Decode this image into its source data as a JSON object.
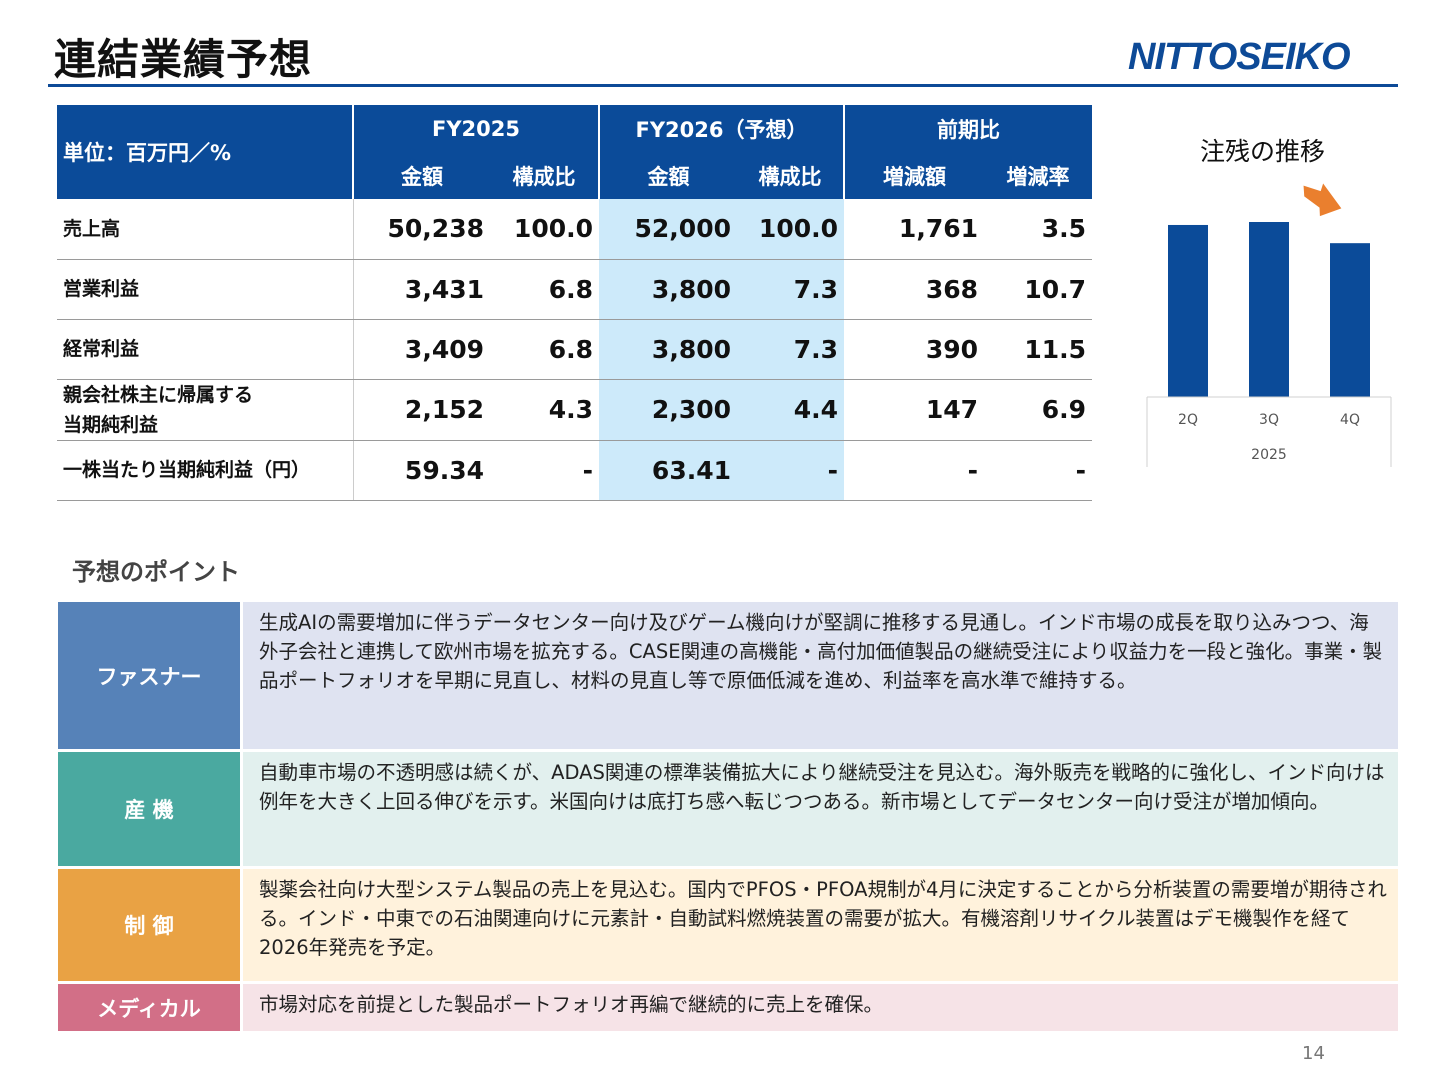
{
  "title": "連結業績予想",
  "logo": "NITTOSEIKO",
  "colors": {
    "brand": "#0d4a97",
    "highlight": "#cdeafa",
    "arrow": "#ea7f2e"
  },
  "table": {
    "unit_label": "単位：百万円／%",
    "groups": [
      "FY2025",
      "FY2026（予想）",
      "前期比"
    ],
    "subheaders": [
      "金額",
      "構成比",
      "金額",
      "構成比",
      "増減額",
      "増減率"
    ],
    "rows": [
      {
        "label": "売上高",
        "values": [
          "50,238",
          "100.0",
          "52,000",
          "100.0",
          "1,761",
          "3.5"
        ]
      },
      {
        "label": "営業利益",
        "values": [
          "3,431",
          "6.8",
          "3,800",
          "7.3",
          "368",
          "10.7"
        ]
      },
      {
        "label": "経常利益",
        "values": [
          "3,409",
          "6.8",
          "3,800",
          "7.3",
          "390",
          "11.5"
        ]
      },
      {
        "label": "親会社株主に帰属する",
        "label2": "当期純利益",
        "values": [
          "2,152",
          "4.3",
          "2,300",
          "4.4",
          "147",
          "6.9"
        ]
      },
      {
        "label": "一株当たり当期純利益（円）",
        "values": [
          "59.34",
          "-",
          "63.41",
          "-",
          "-",
          "-"
        ]
      }
    ]
  },
  "chart_data": {
    "type": "bar",
    "title": "注残の推移",
    "categories": [
      "2Q",
      "3Q",
      "4Q"
    ],
    "group_label": "2025",
    "values_relative": [
      98.3,
      100,
      87.9
    ],
    "annotation": "down-right-arrow-icon",
    "grid": false,
    "color": "#0b4b99"
  },
  "points": {
    "title": "予想のポイント",
    "items": [
      {
        "label": "ファスナー",
        "color": "#5682b8",
        "bg": "#dfe3f1",
        "text": "生成AIの需要増加に伴うデータセンター向け及びゲーム機向けが堅調に推移する見通し。インド市場の成長を取り込みつつ、海外子会社と連携して欧州市場を拡充する。CASE関連の高機能・高付加価値製品の継続受注により収益力を一段と強化。事業・製品ポートフォリオを早期に見直し、材料の見直し等で原価低減を進め、利益率を高水準で維持する。"
      },
      {
        "label": "産 機",
        "color": "#4aa9a0",
        "bg": "#e2f0ee",
        "text": "自動車市場の不透明感は続くが、ADAS関連の標準装備拡大により継続受注を見込む。海外販売を戦略的に強化し、インド向けは例年を大きく上回る伸びを示す。米国向けは底打ち感へ転じつつある。新市場としてデータセンター向け受注が増加傾向。"
      },
      {
        "label": "制 御",
        "color": "#e9a244",
        "bg": "#fff2dc",
        "text": "製薬会社向け大型システム製品の売上を見込む。国内でPFOS・PFOA規制が4月に決定することから分析装置の需要増が期待される。インド・中東での石油関連向けに元素計・自動試料燃焼装置の需要が拡大。有機溶剤リサイクル装置はデモ機製作を経て2026年発売を予定。"
      },
      {
        "label": "メディカル",
        "color": "#d26f87",
        "bg": "#f6e3e7",
        "text": "市場対応を前提とした製品ポートフォリオ再編で継続的に売上を確保。"
      }
    ]
  },
  "page_number": "14"
}
